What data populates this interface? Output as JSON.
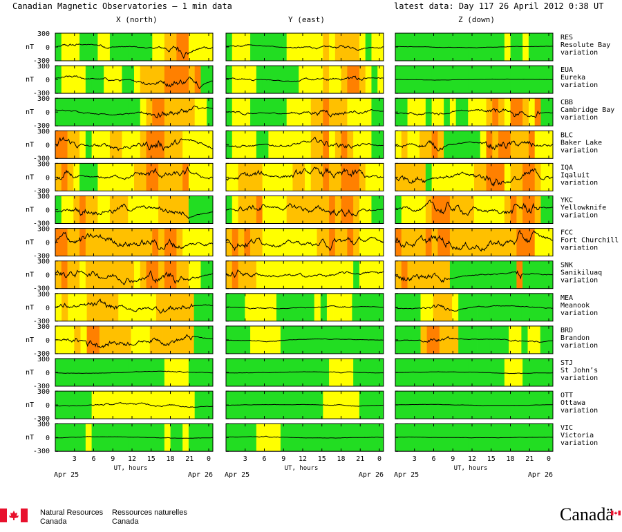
{
  "header": {
    "title": "Canadian Magnetic Observatories — 1 min data",
    "latest": "latest data: Day 117   26 April 2012   0:38 UT"
  },
  "chart_data": {
    "type": "line",
    "columns": [
      "X (north)",
      "Y (east)",
      "Z (down)"
    ],
    "y_ticks": [
      "300",
      "0",
      "-300"
    ],
    "y_unit": "nT",
    "ylim": [
      -300,
      300
    ],
    "x_ticks": [
      "3",
      "6",
      "9",
      "12",
      "15",
      "18",
      "21",
      "0"
    ],
    "xlim_hours": [
      0,
      24.65
    ],
    "x_label": "UT, hours",
    "date_start": "Apr 25",
    "date_end": "Apr 26",
    "activity_colors": {
      "quiet": "#22dd22",
      "moderate": "#ffff00",
      "active": "#ffc000",
      "storm": "#ff8000"
    },
    "stations": [
      {
        "code": "RES",
        "name": "Resolute Bay",
        "kind": "variation",
        "activity": [
          "gyyygggyygggggggyyaaooyyyy",
          "gyyyggggggyyyyyyayaaaaygyy",
          "ggggggggggggggggggyggygggg"
        ],
        "amp": [
          0.85,
          0.45,
          0.25
        ]
      },
      {
        "code": "EUA",
        "name": "Eureka",
        "kind": "variation",
        "activity": [
          "gyyyygggyyyggyaaaaooooaogg",
          "gyyyygggggggyyyyayyaooaygy",
          "gggggggggggggggggggggggggg"
        ],
        "amp": [
          0.7,
          0.55,
          0.2
        ]
      },
      {
        "code": "CBB",
        "name": "Cambridge Bay",
        "kind": "variation",
        "activity": [
          "ggggggggggggggyaooaaaaayyg",
          "gyyyggggggyyyyaaoaaayyyygg",
          "ggyyygyygyggyyyaoayooayogg"
        ],
        "amp": [
          0.9,
          0.75,
          0.7
        ]
      },
      {
        "code": "BLC",
        "name": "Baker Lake",
        "kind": "variation",
        "activity": [
          "ooaaygyyyaayyyaoooaaayyyyy",
          "gyyyyggyyyyyyyaaoyaoayyygg",
          "yayyaaoaggggggyoaooaaaoyyy"
        ],
        "amp": [
          1.0,
          0.75,
          0.85
        ]
      },
      {
        "code": "IQA",
        "name": "Iqaluit",
        "kind": "variation",
        "activity": [
          "aoaygggyyyyyyaaooaaaaoyyyy",
          "yyaaaayyyyyaayaaoaaoooayyy",
          "aaaaagyyyyyyyaaoooyaaooayy"
        ],
        "amp": [
          0.85,
          1.0,
          1.0
        ]
      },
      {
        "code": "YKC",
        "name": "Yellowknife",
        "kind": "variation",
        "activity": [
          "gyyaoaayyaaayyyyyaaaaagggg",
          "gyaaaoyyyyaaaaaaaoaooayygg",
          "gyyyyaoooaaaayyyyyaoaooagg"
        ],
        "amp": [
          0.95,
          0.85,
          1.0
        ]
      },
      {
        "code": "FCC",
        "name": "Fort Churchill",
        "kind": "variation",
        "activity": [
          "ooaaoaaaaaaaaaaaoaooayyyyy",
          "aoaoaayyyyyyyyyaaoaaoayyyy",
          "oaaaaoaooaaaaaaaaaaaoooyyy"
        ],
        "amp": [
          1.0,
          0.95,
          1.0
        ]
      },
      {
        "code": "SNK",
        "name": "Sanikiluaq",
        "kind": "variation",
        "activity": [
          "aoaayaaaaaaaayaooaooaayygg",
          "aoaaayyyyyyyyyyyyyyyygyyyy",
          "aoaaaaaaagggggggggggoggggg"
        ],
        "amp": [
          0.95,
          0.75,
          0.9
        ]
      },
      {
        "code": "MEA",
        "name": "Meanook",
        "kind": "variation",
        "activity": [
          "yayyyaaaaayyyyyyaaaaaaggg",
          "gggyyyyyggggggygyyyyggggg",
          "ggggyyaaayggggggggggggggg"
        ],
        "amp": [
          1.0,
          0.4,
          0.65
        ]
      },
      {
        "code": "BRD",
        "name": "Brandon",
        "kind": "variation",
        "activity": [
          "yyyayooaaaaayyyaaaaaaaggg",
          "ggggyyyyyggggggggggggggggg",
          "ggggaooaaaggggggggyygyygg"
        ],
        "amp": [
          0.85,
          0.3,
          0.45
        ]
      },
      {
        "code": "STJ",
        "name": "St John’s",
        "kind": "variation",
        "activity": [
          "ggggggggggggggggggyyyygggg",
          "gggggggggggggggggyyyyggggg",
          "ggggggggggggggggggyyyggggg"
        ],
        "amp": [
          0.35,
          0.25,
          0.25
        ]
      },
      {
        "code": "OTT",
        "name": "Ottawa",
        "kind": "variation",
        "activity": [
          "ggggggyyyyyyyyyyyyyyyyyggg",
          "ggggggggggggggggyyyyyygggg",
          "gggggggggggggggggggggggggg"
        ],
        "amp": [
          0.45,
          0.25,
          0.2
        ]
      },
      {
        "code": "VIC",
        "name": "Victoria",
        "kind": "variation",
        "activity": [
          "gggggyggggggggggggyggygggg",
          "gggggyyyyggggggggggggggggg",
          "gggggggggggggggggggggggggg"
        ],
        "amp": [
          0.3,
          0.25,
          0.15
        ]
      }
    ]
  },
  "footer": {
    "dept_en_1": "Natural Resources",
    "dept_en_2": "Canada",
    "dept_fr_1": "Ressources naturelles",
    "dept_fr_2": "Canada",
    "wordmark": "Canadä"
  }
}
